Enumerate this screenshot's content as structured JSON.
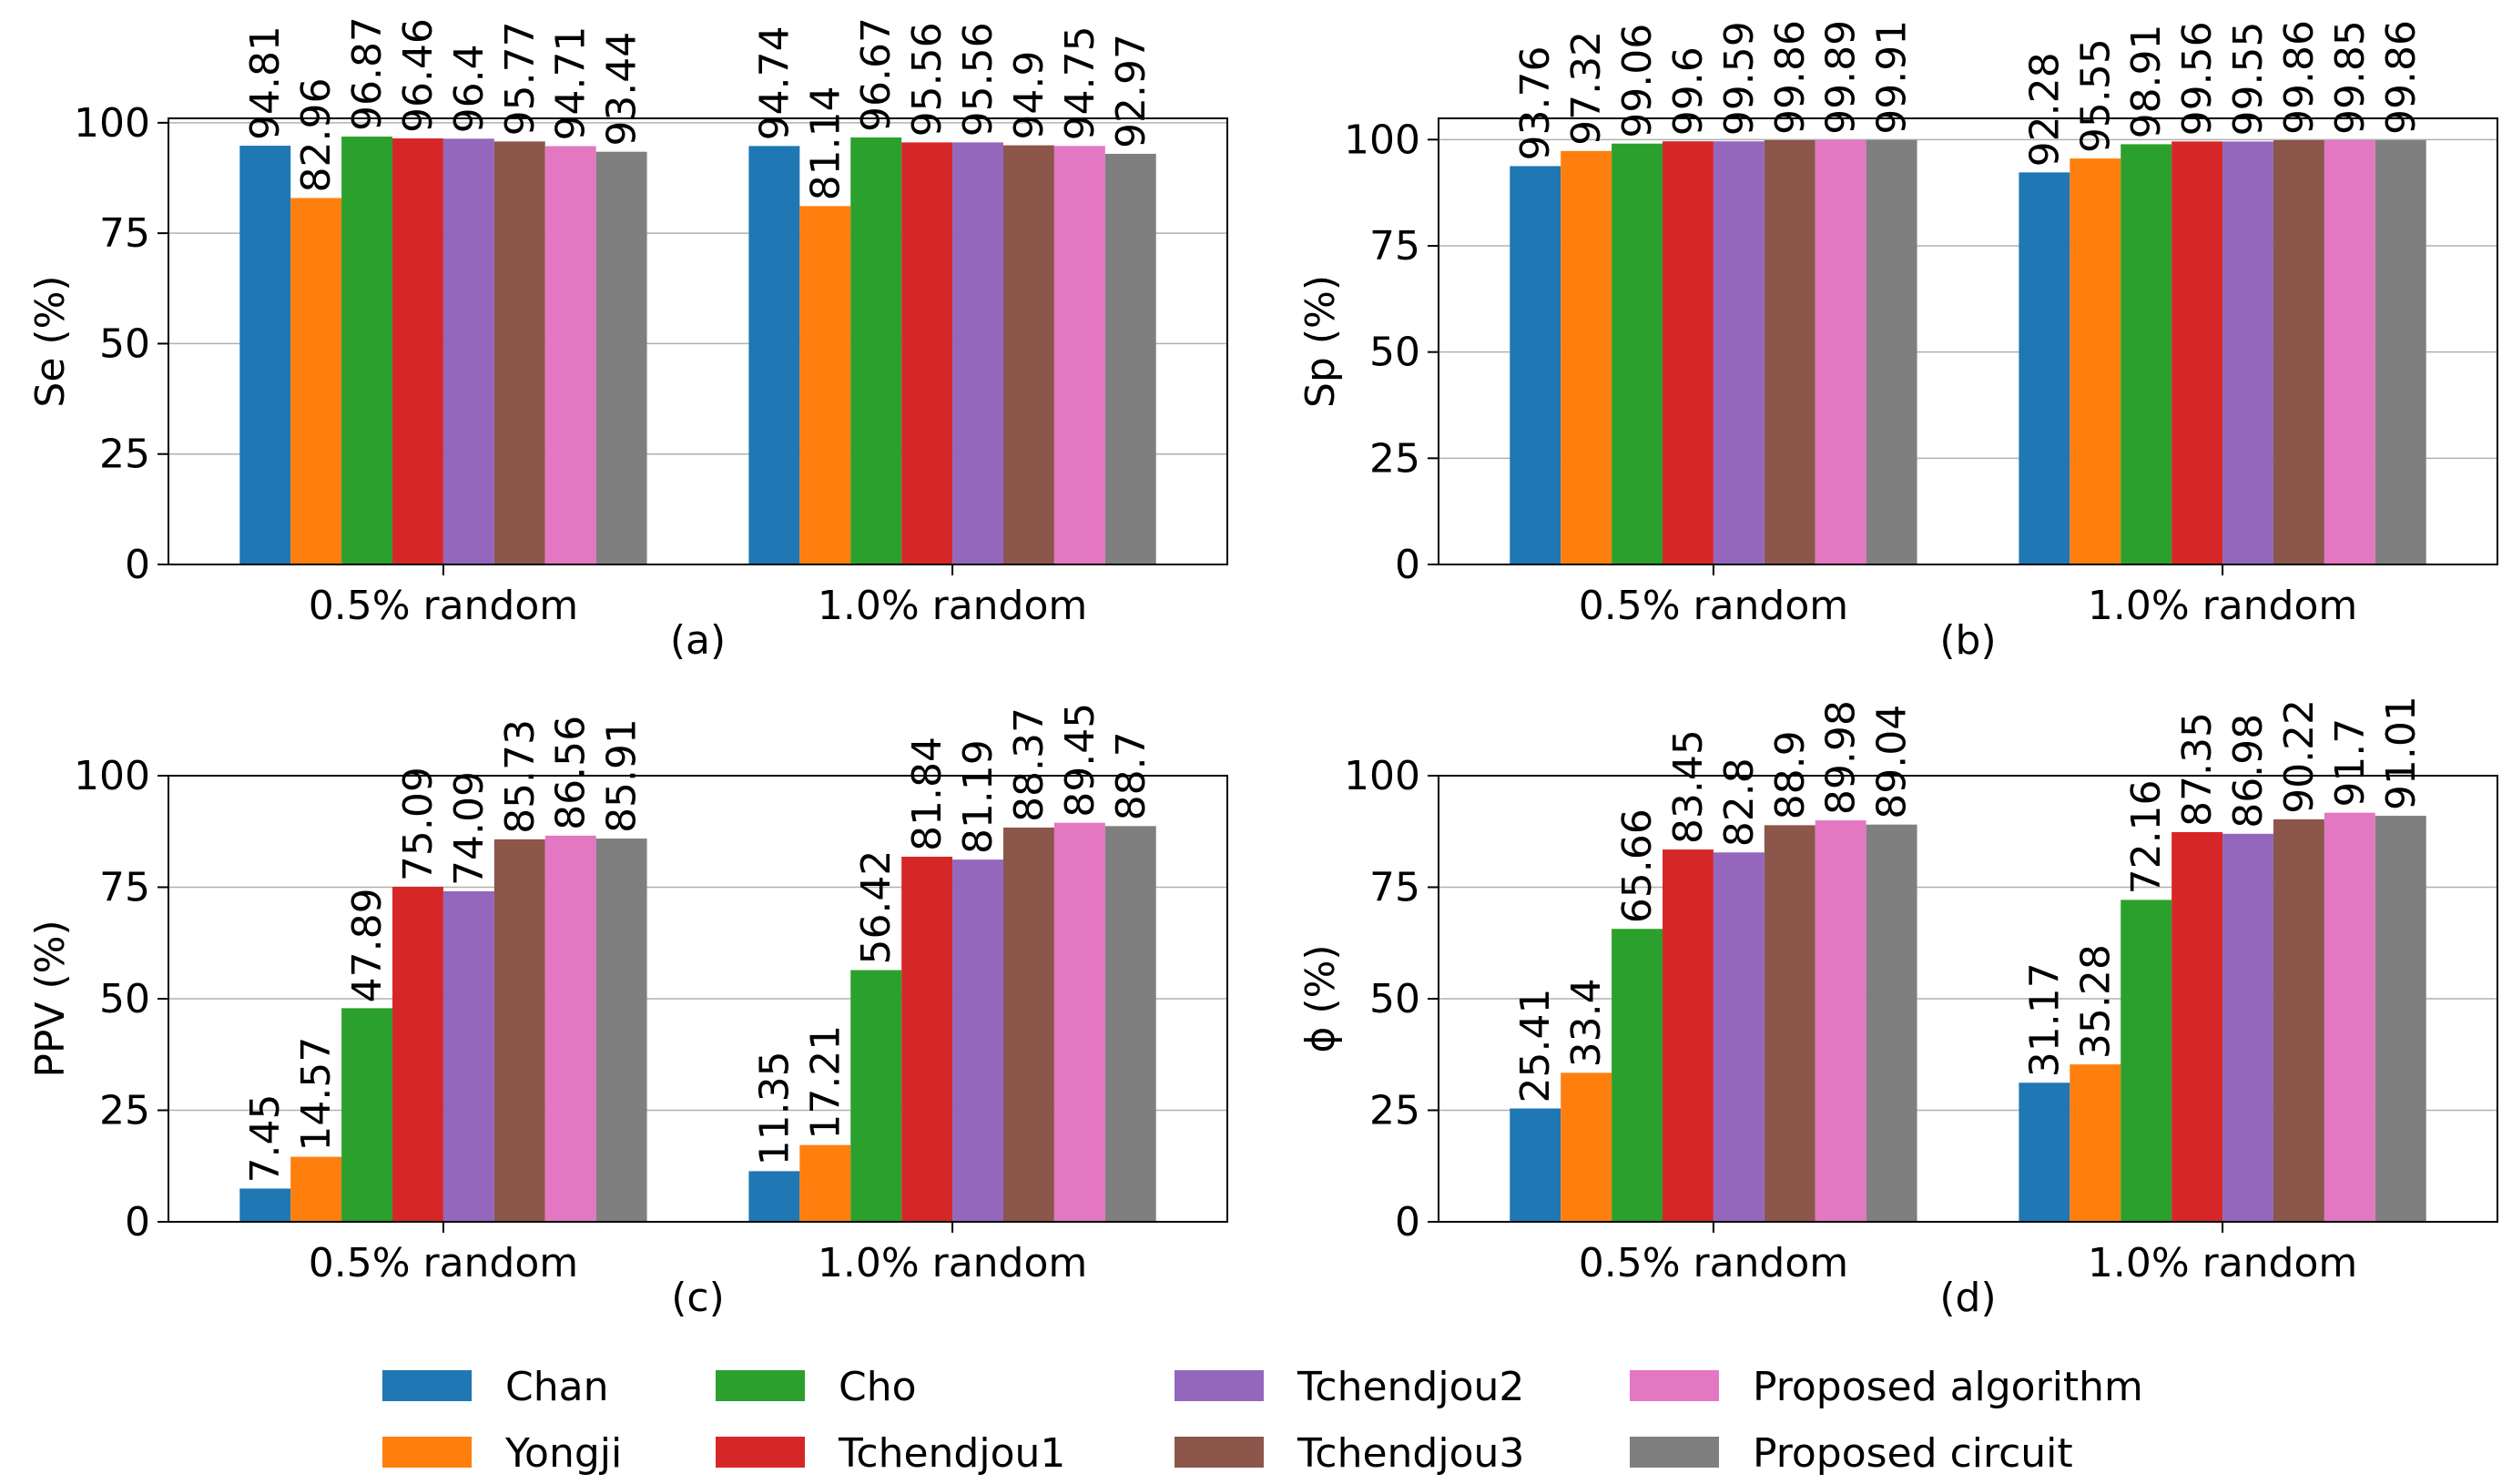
{
  "legend": [
    {
      "name": "Chan",
      "color": "#1f77b4"
    },
    {
      "name": "Yongji",
      "color": "#ff7f0e"
    },
    {
      "name": "Cho",
      "color": "#2ca02c"
    },
    {
      "name": "Tchendjou1",
      "color": "#d62728"
    },
    {
      "name": "Tchendjou2",
      "color": "#9467bd"
    },
    {
      "name": "Tchendjou3",
      "color": "#8c564b"
    },
    {
      "name": "Proposed algorithm",
      "color": "#e377c2"
    },
    {
      "name": "Proposed circuit",
      "color": "#7f7f7f"
    }
  ],
  "chart_data": [
    {
      "type": "bar",
      "panel_label": "(a)",
      "ylabel": "Se (%)",
      "ylim": [
        0,
        101
      ],
      "yticks": [
        0,
        25,
        50,
        75,
        100
      ],
      "categories": [
        "0.5% random",
        "1.0% random"
      ],
      "series": [
        {
          "name": "Chan",
          "values": [
            94.81,
            94.74
          ]
        },
        {
          "name": "Yongji",
          "values": [
            82.96,
            81.14
          ]
        },
        {
          "name": "Cho",
          "values": [
            96.87,
            96.67
          ]
        },
        {
          "name": "Tchendjou1",
          "values": [
            96.46,
            95.56
          ]
        },
        {
          "name": "Tchendjou2",
          "values": [
            96.4,
            95.56
          ]
        },
        {
          "name": "Tchendjou3",
          "values": [
            95.77,
            94.9
          ]
        },
        {
          "name": "Proposed algorithm",
          "values": [
            94.71,
            94.75
          ]
        },
        {
          "name": "Proposed circuit",
          "values": [
            93.44,
            92.97
          ]
        }
      ]
    },
    {
      "type": "bar",
      "panel_label": "(b)",
      "ylabel": "Sp (%)",
      "ylim": [
        0,
        105
      ],
      "yticks": [
        0,
        25,
        50,
        75,
        100
      ],
      "categories": [
        "0.5% random",
        "1.0% random"
      ],
      "series": [
        {
          "name": "Chan",
          "values": [
            93.76,
            92.28
          ]
        },
        {
          "name": "Yongji",
          "values": [
            97.32,
            95.55
          ]
        },
        {
          "name": "Cho",
          "values": [
            99.06,
            98.91
          ]
        },
        {
          "name": "Tchendjou1",
          "values": [
            99.6,
            99.56
          ]
        },
        {
          "name": "Tchendjou2",
          "values": [
            99.59,
            99.55
          ]
        },
        {
          "name": "Tchendjou3",
          "values": [
            99.86,
            99.86
          ]
        },
        {
          "name": "Proposed algorithm",
          "values": [
            99.89,
            99.85
          ]
        },
        {
          "name": "Proposed circuit",
          "values": [
            99.91,
            99.86
          ]
        }
      ]
    },
    {
      "type": "bar",
      "panel_label": "(c)",
      "ylabel": "PPV (%)",
      "ylim": [
        0,
        100
      ],
      "yticks": [
        0,
        25,
        50,
        75,
        100
      ],
      "categories": [
        "0.5% random",
        "1.0% random"
      ],
      "series": [
        {
          "name": "Chan",
          "values": [
            7.45,
            11.35
          ]
        },
        {
          "name": "Yongji",
          "values": [
            14.57,
            17.21
          ]
        },
        {
          "name": "Cho",
          "values": [
            47.89,
            56.42
          ]
        },
        {
          "name": "Tchendjou1",
          "values": [
            75.09,
            81.84
          ]
        },
        {
          "name": "Tchendjou2",
          "values": [
            74.09,
            81.19
          ]
        },
        {
          "name": "Tchendjou3",
          "values": [
            85.73,
            88.37
          ]
        },
        {
          "name": "Proposed algorithm",
          "values": [
            86.56,
            89.45
          ]
        },
        {
          "name": "Proposed circuit",
          "values": [
            85.91,
            88.7
          ]
        }
      ]
    },
    {
      "type": "bar",
      "panel_label": "(d)",
      "ylabel": "ϕ (%)",
      "ylim": [
        0,
        100
      ],
      "yticks": [
        0,
        25,
        50,
        75,
        100
      ],
      "categories": [
        "0.5% random",
        "1.0% random"
      ],
      "series": [
        {
          "name": "Chan",
          "values": [
            25.41,
            31.17
          ]
        },
        {
          "name": "Yongji",
          "values": [
            33.4,
            35.28
          ]
        },
        {
          "name": "Cho",
          "values": [
            65.66,
            72.16
          ]
        },
        {
          "name": "Tchendjou1",
          "values": [
            83.45,
            87.35
          ]
        },
        {
          "name": "Tchendjou2",
          "values": [
            82.8,
            86.98
          ]
        },
        {
          "name": "Tchendjou3",
          "values": [
            88.9,
            90.22
          ]
        },
        {
          "name": "Proposed algorithm",
          "values": [
            89.98,
            91.7
          ]
        },
        {
          "name": "Proposed circuit",
          "values": [
            89.04,
            91.01
          ]
        }
      ]
    }
  ]
}
